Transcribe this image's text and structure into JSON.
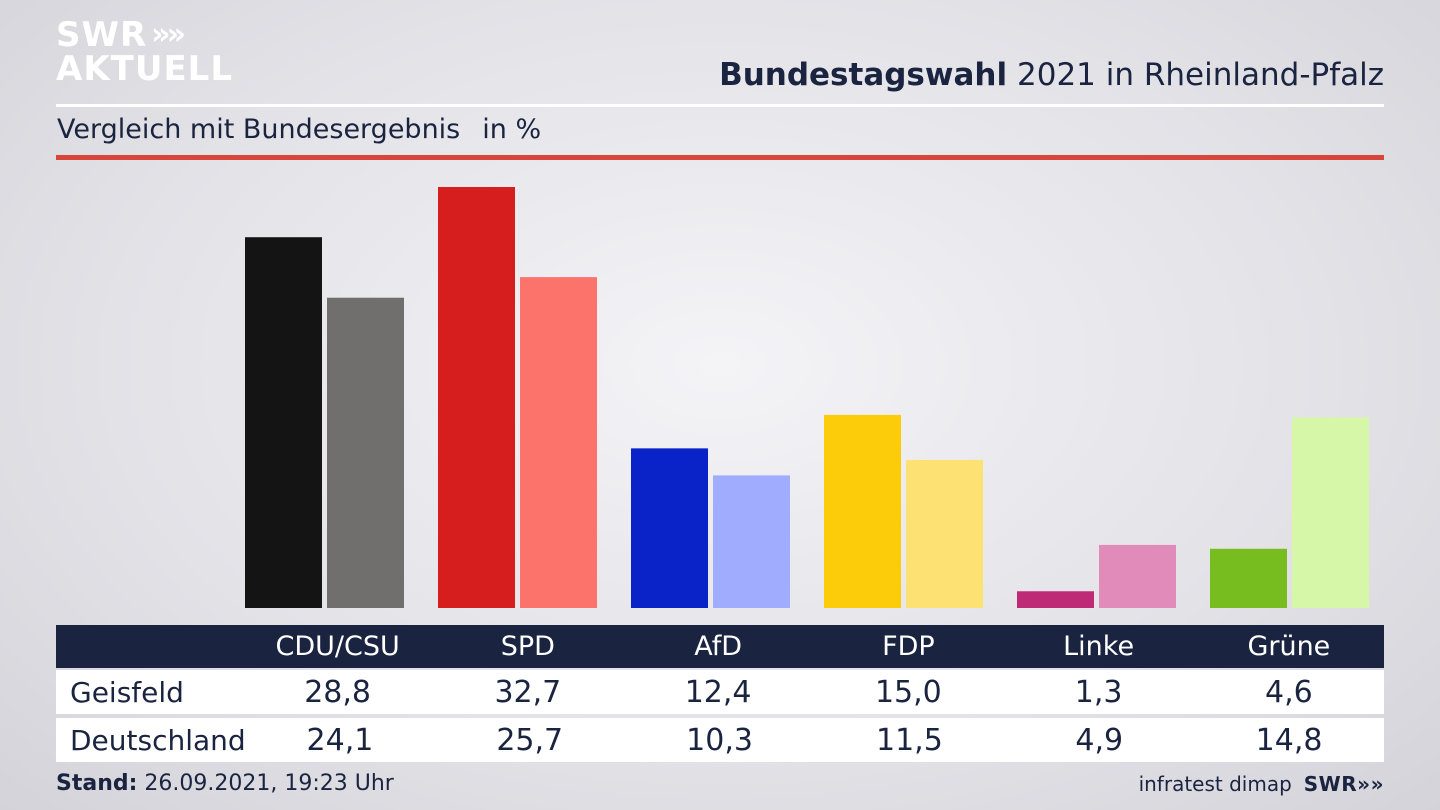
{
  "brand": {
    "line1": "SWR",
    "line2": "AKTUELL",
    "arrows": "»"
  },
  "header": {
    "title_bold": "Bundestagswahl",
    "title_rest": "2021 in Rheinland-Pfalz"
  },
  "subheader": {
    "text": "Vergleich mit Bundesergebnis",
    "unit": "in %"
  },
  "chart_data": {
    "type": "bar",
    "categories": [
      "CDU/CSU",
      "SPD",
      "AfD",
      "FDP",
      "Linke",
      "Grüne"
    ],
    "series": [
      {
        "name": "Geisfeld",
        "values": [
          28.8,
          32.7,
          12.4,
          15.0,
          1.3,
          4.6
        ],
        "colors": [
          "#141414",
          "#d61e1e",
          "#0a23c8",
          "#fccc0a",
          "#be2a75",
          "#78bd20"
        ]
      },
      {
        "name": "Deutschland",
        "values": [
          24.1,
          25.7,
          10.3,
          11.5,
          4.9,
          14.8
        ],
        "colors": [
          "#706f6d",
          "#fc736b",
          "#a0adff",
          "#fde172",
          "#e08bb9",
          "#d5f7a7"
        ]
      }
    ],
    "ylim": [
      0,
      32.7
    ]
  },
  "table": {
    "headers": [
      "CDU/CSU",
      "SPD",
      "AfD",
      "FDP",
      "Linke",
      "Grüne"
    ],
    "rows": [
      {
        "label": "Geisfeld",
        "values": [
          "28,8",
          "32,7",
          "12,4",
          "15,0",
          "1,3",
          "4,6"
        ]
      },
      {
        "label": "Deutschland",
        "values": [
          "24,1",
          "25,7",
          "10,3",
          "11,5",
          "4,9",
          "14,8"
        ]
      }
    ]
  },
  "footer": {
    "stand_label": "Stand:",
    "stand_value": "26.09.2021, 19:23 Uhr",
    "source": "infratest dimap",
    "logo": "SWR"
  }
}
